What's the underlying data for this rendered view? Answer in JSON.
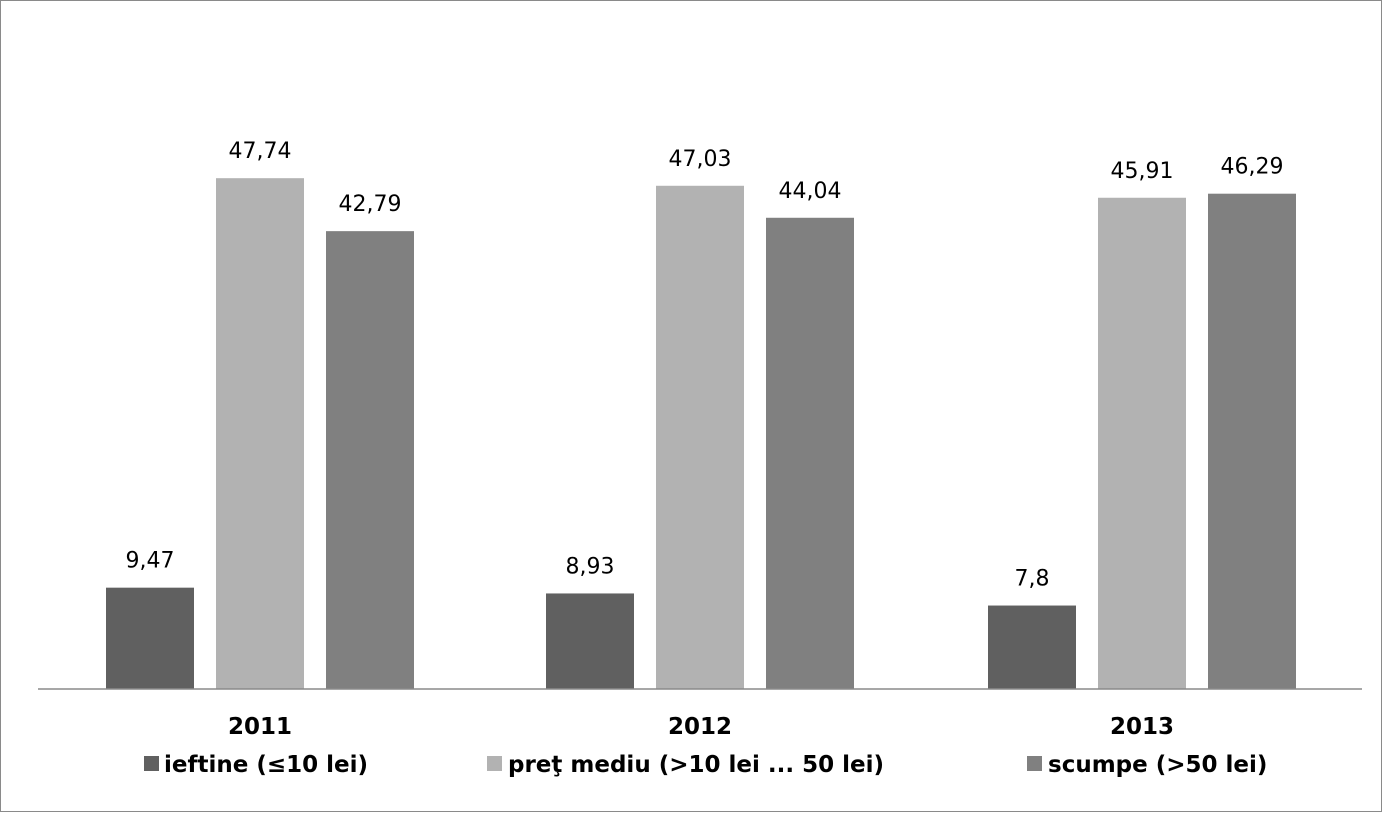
{
  "chart_data": {
    "type": "bar",
    "title": "",
    "xlabel": "",
    "ylabel": "",
    "categories": [
      "2011",
      "2012",
      "2013"
    ],
    "series": [
      {
        "name": "ieftine (≤10 lei)",
        "values": [
          9.47,
          8.93,
          7.8
        ],
        "labels": [
          "9,47",
          "8,93",
          "7,8"
        ],
        "color": "#606060"
      },
      {
        "name": "preţ mediu (>10 lei ... 50 lei)",
        "values": [
          47.74,
          47.03,
          45.91
        ],
        "labels": [
          "47,74",
          "47,03",
          "45,91"
        ],
        "color": "#b2b2b2"
      },
      {
        "name": "scumpe (>50 lei)",
        "values": [
          42.79,
          44.04,
          46.29
        ],
        "labels": [
          "42,79",
          "44,04",
          "46,29"
        ],
        "color": "#808080"
      }
    ],
    "ylim": [
      0,
      60
    ],
    "grid": false,
    "legend_position": "bottom"
  }
}
